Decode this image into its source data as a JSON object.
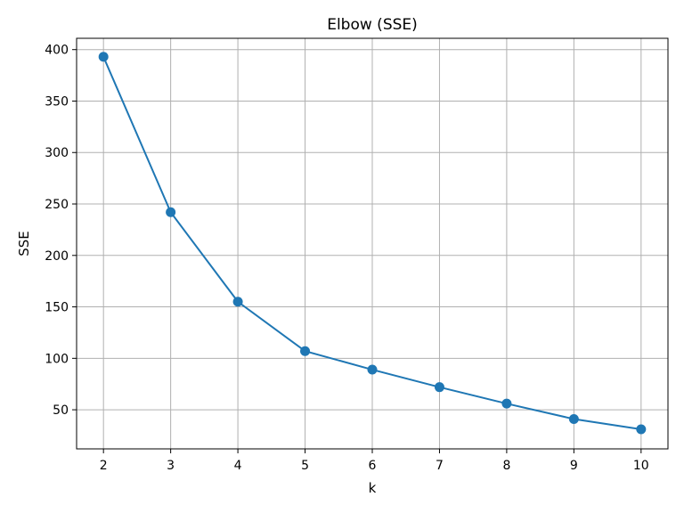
{
  "chart_data": {
    "type": "line",
    "title": "Elbow (SSE)",
    "xlabel": "k",
    "ylabel": "SSE",
    "x": [
      2,
      3,
      4,
      5,
      6,
      7,
      8,
      9,
      10
    ],
    "series": [
      {
        "values": [
          393,
          242,
          155,
          107,
          89,
          72,
          56,
          41,
          31
        ],
        "color": "#1f77b4",
        "marker": "circle"
      }
    ],
    "xlim": [
      1.6,
      10.4
    ],
    "ylim": [
      12,
      411
    ],
    "xticks": [
      2,
      3,
      4,
      5,
      6,
      7,
      8,
      9,
      10
    ],
    "yticks": [
      50,
      100,
      150,
      200,
      250,
      300,
      350,
      400
    ],
    "grid": true
  }
}
